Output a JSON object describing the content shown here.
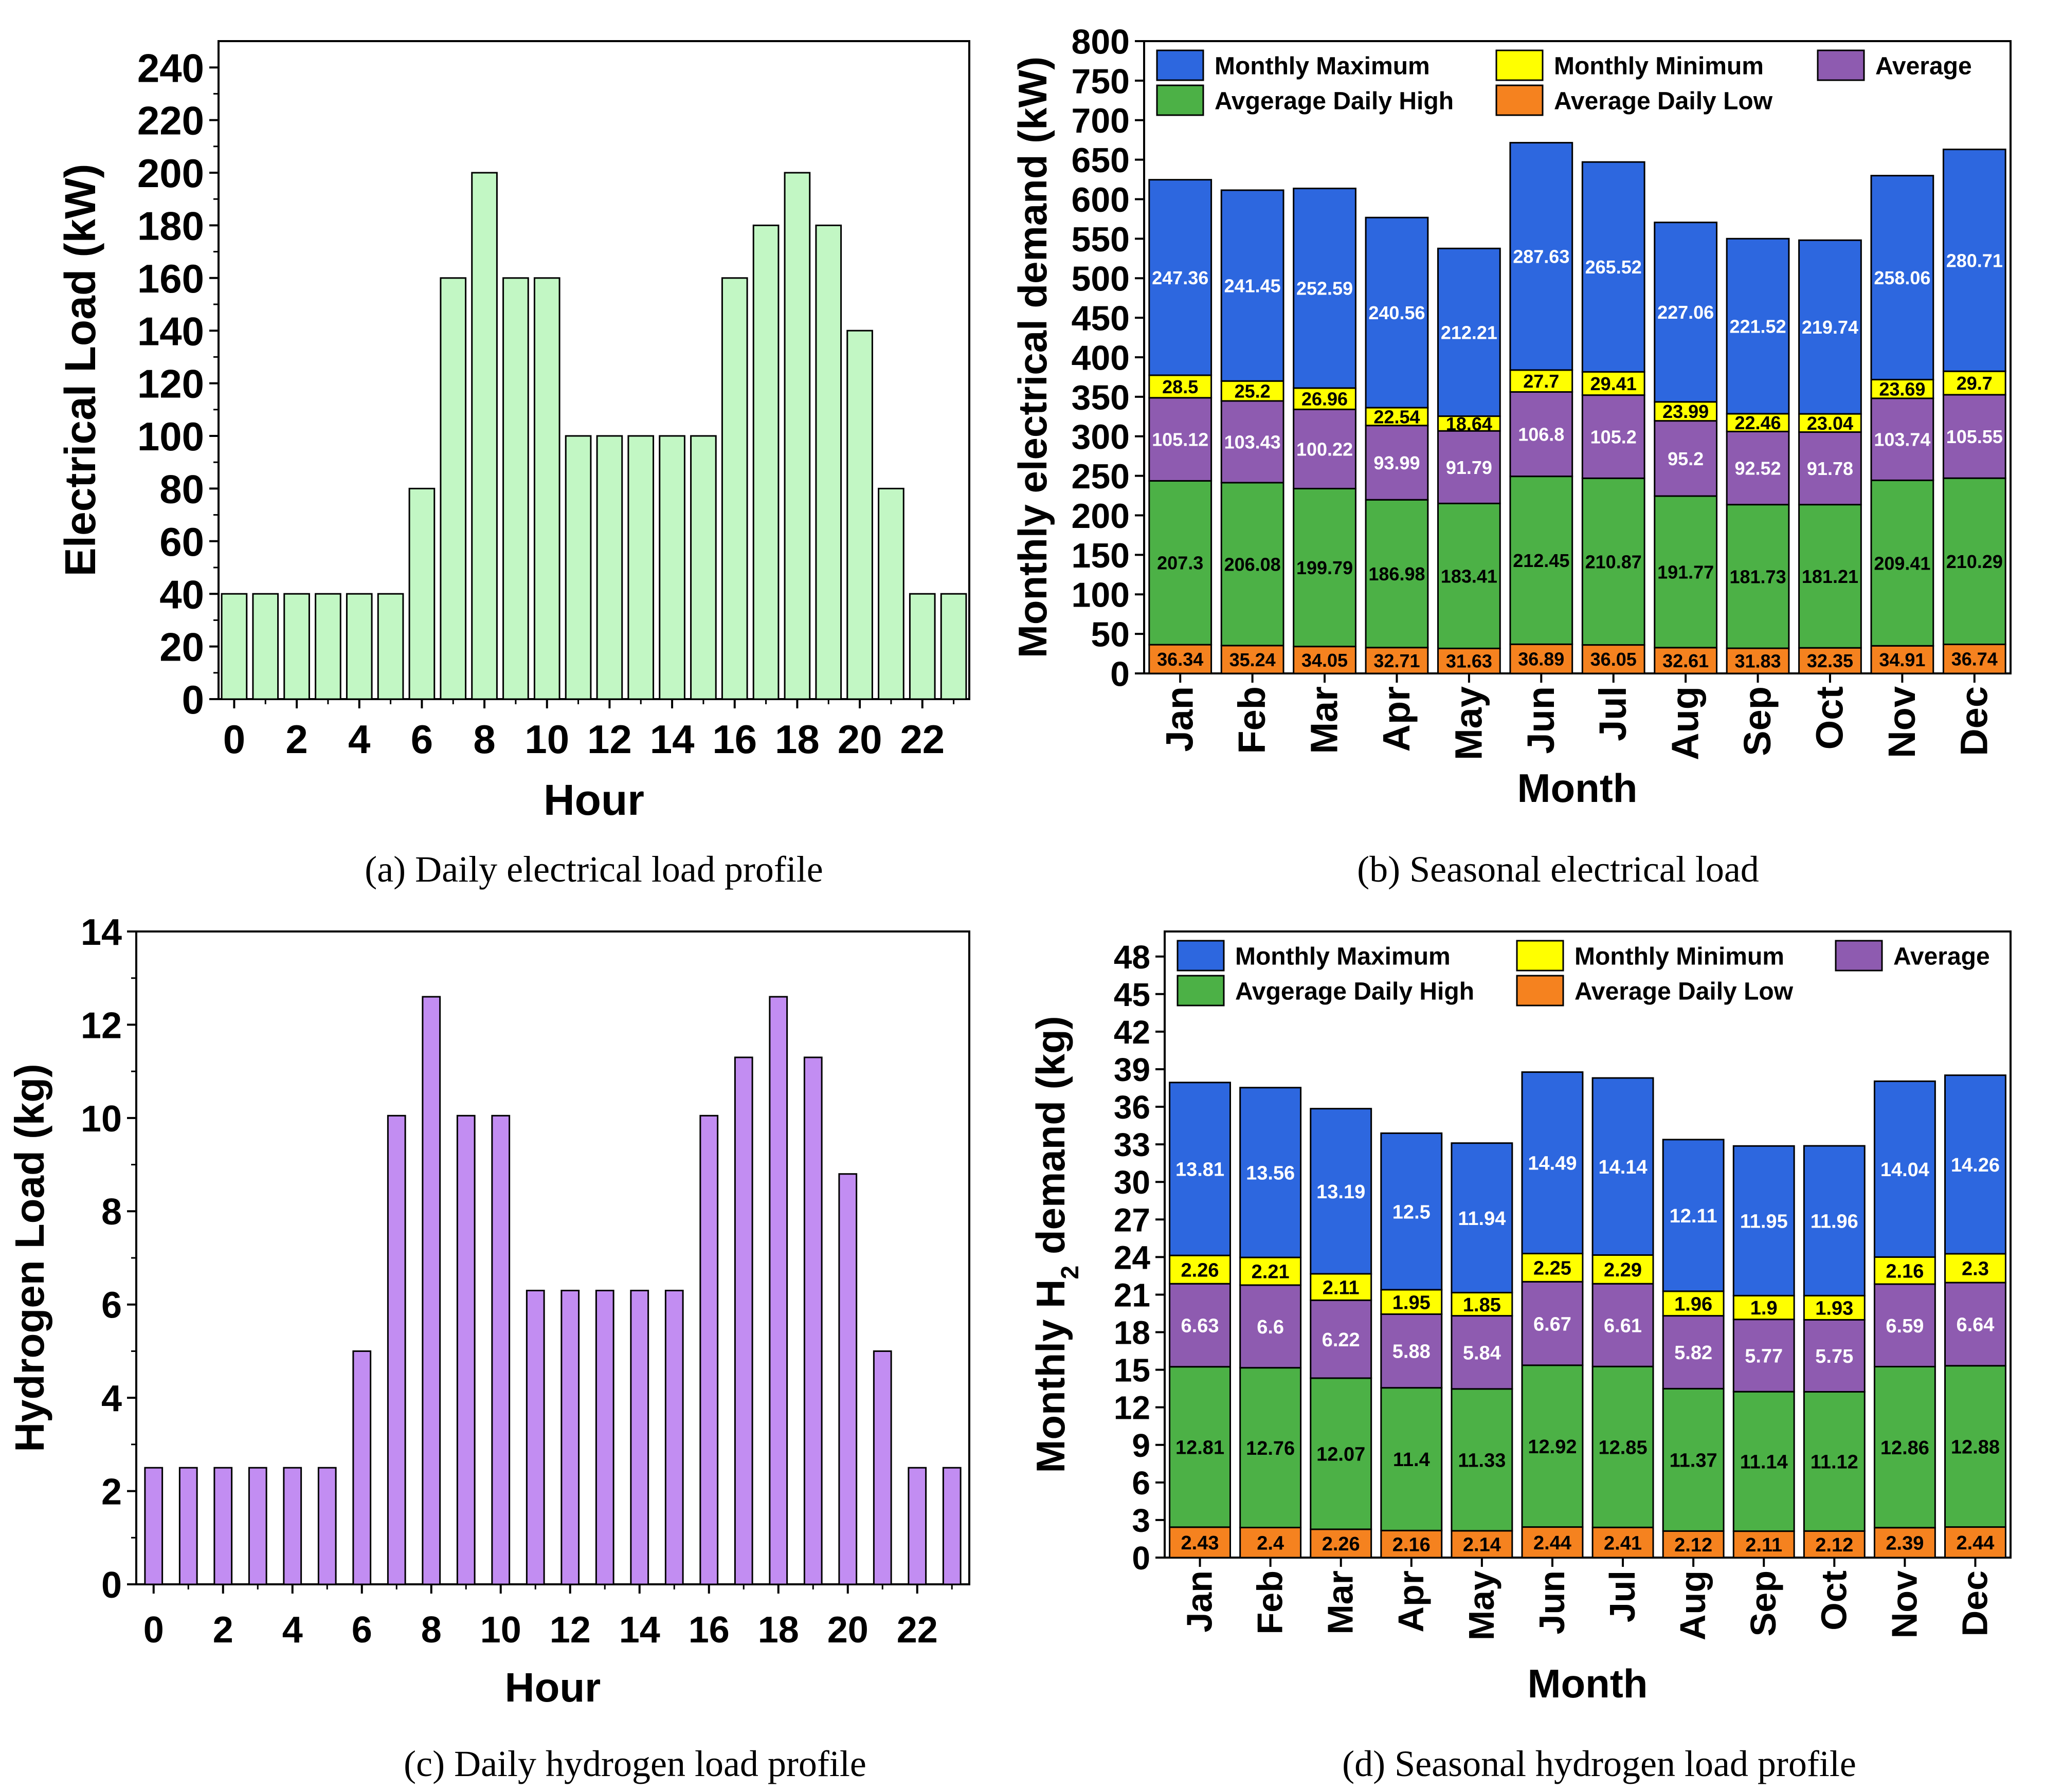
{
  "chart_data": [
    {
      "type": "bar",
      "id": "a",
      "caption": "(a) Daily electrical load profile",
      "xlabel": "Hour",
      "ylabel": "Electrical Load (kW)",
      "ylim": [
        0,
        250
      ],
      "yticks": [
        "0",
        "20",
        "40",
        "60",
        "80",
        "100",
        "120",
        "140",
        "160",
        "180",
        "200",
        "220",
        "240"
      ],
      "yticks_values": [
        0,
        20,
        40,
        60,
        80,
        100,
        120,
        140,
        160,
        180,
        200,
        220,
        240
      ],
      "xticks": [
        "0",
        "2",
        "4",
        "6",
        "8",
        "10",
        "12",
        "14",
        "16",
        "18",
        "20",
        "22"
      ],
      "xticks_values": [
        0,
        2,
        4,
        6,
        8,
        10,
        12,
        14,
        16,
        18,
        20,
        22
      ],
      "x": [
        0,
        1,
        2,
        3,
        4,
        5,
        6,
        7,
        8,
        9,
        10,
        11,
        12,
        13,
        14,
        15,
        16,
        17,
        18,
        19,
        20,
        21,
        22,
        23
      ],
      "values": [
        40,
        40,
        40,
        40,
        40,
        40,
        80,
        160,
        200,
        160,
        160,
        100,
        100,
        100,
        100,
        100,
        160,
        180,
        200,
        180,
        140,
        80,
        40,
        40
      ],
      "color": "#c2f7c4"
    },
    {
      "type": "bar",
      "stacked": true,
      "id": "b",
      "caption": "(b) Seasonal electrical load",
      "xlabel": "Month",
      "ylabel": "Monthly electrical demand (kW)",
      "ylim": [
        0,
        800
      ],
      "yticks": [
        "0",
        "50",
        "100",
        "150",
        "200",
        "250",
        "300",
        "350",
        "400",
        "450",
        "500",
        "550",
        "600",
        "650",
        "700",
        "750",
        "800"
      ],
      "yticks_values": [
        0,
        50,
        100,
        150,
        200,
        250,
        300,
        350,
        400,
        450,
        500,
        550,
        600,
        650,
        700,
        750,
        800
      ],
      "categories": [
        "Jan",
        "Feb",
        "Mar",
        "Apr",
        "May",
        "Jun",
        "Jul",
        "Aug",
        "Sep",
        "Oct",
        "Nov",
        "Dec"
      ],
      "legend": [
        "Monthly Maximum",
        "Monthly Minimum",
        "Average",
        "Avgerage Daily High",
        "Average Daily Low"
      ],
      "series": [
        {
          "name": "Average Daily Low",
          "color": "#f5821f",
          "label_color": "#000000",
          "values": [
            36.34,
            35.24,
            34.05,
            32.71,
            31.63,
            36.89,
            36.05,
            32.61,
            31.83,
            32.35,
            34.91,
            36.74
          ],
          "labels": [
            "36.34",
            "35.24",
            "34.05",
            "32.71",
            "31.63",
            "36.89",
            "36.05",
            "32.61",
            "31.83",
            "32.35",
            "34.91",
            "36.74"
          ]
        },
        {
          "name": "Avgerage Daily High",
          "color": "#4cb146",
          "label_color": "#000000",
          "values": [
            207.3,
            206.08,
            199.79,
            186.98,
            183.41,
            212.45,
            210.87,
            191.77,
            181.73,
            181.21,
            209.41,
            210.29
          ],
          "labels": [
            "207.3",
            "206.08",
            "199.79",
            "186.98",
            "183.41",
            "212.45",
            "210.87",
            "191.77",
            "181.73",
            "181.21",
            "209.41",
            "210.29"
          ]
        },
        {
          "name": "Average",
          "color": "#8e5bb0",
          "label_color": "#ffffff",
          "values": [
            105.12,
            103.43,
            100.22,
            93.99,
            91.79,
            106.8,
            105.2,
            95.2,
            92.52,
            91.78,
            103.74,
            105.55
          ],
          "labels": [
            "105.12",
            "103.43",
            "100.22",
            "93.99",
            "91.79",
            "106.8",
            "105.2",
            "95.2",
            "92.52",
            "91.78",
            "103.74",
            "105.55"
          ]
        },
        {
          "name": "Monthly Minimum",
          "color": "#ffff00",
          "label_color": "#000000",
          "values": [
            28.5,
            25.2,
            26.96,
            22.54,
            18.64,
            27.7,
            29.41,
            23.99,
            22.46,
            23.04,
            23.69,
            29.7
          ],
          "labels": [
            "28.5",
            "25.2",
            "26.96",
            "22.54",
            "18.64",
            "27.7",
            "29.41",
            "23.99",
            "22.46",
            "23.04",
            "23.69",
            "29.7"
          ]
        },
        {
          "name": "Monthly Maximum",
          "color": "#2d67df",
          "label_color": "#ffffff",
          "values": [
            247.36,
            241.45,
            252.59,
            240.56,
            212.21,
            287.63,
            265.52,
            227.06,
            221.52,
            219.74,
            258.06,
            280.71
          ],
          "labels": [
            "247.36",
            "241.45",
            "252.59",
            "240.56",
            "212.21",
            "287.63",
            "265.52",
            "227.06",
            "221.52",
            "219.74",
            "258.06",
            "280.71"
          ]
        }
      ]
    },
    {
      "type": "bar",
      "id": "c",
      "caption": "(c) Daily hydrogen load profile",
      "xlabel": "Hour",
      "ylabel": "Hydrogen Load (kg)",
      "ylim": [
        0,
        14
      ],
      "yticks": [
        "0",
        "2",
        "4",
        "6",
        "8",
        "10",
        "12",
        "14"
      ],
      "yticks_values": [
        0,
        2,
        4,
        6,
        8,
        10,
        12,
        14
      ],
      "xticks": [
        "0",
        "2",
        "4",
        "6",
        "8",
        "10",
        "12",
        "14",
        "16",
        "18",
        "20",
        "22"
      ],
      "xticks_values": [
        0,
        2,
        4,
        6,
        8,
        10,
        12,
        14,
        16,
        18,
        20,
        22
      ],
      "x": [
        0,
        1,
        2,
        3,
        4,
        5,
        6,
        7,
        8,
        9,
        10,
        11,
        12,
        13,
        14,
        15,
        16,
        17,
        18,
        19,
        20,
        21,
        22,
        23
      ],
      "values": [
        2.5,
        2.5,
        2.5,
        2.5,
        2.5,
        2.5,
        5.0,
        10.05,
        12.6,
        10.05,
        10.05,
        6.3,
        6.3,
        6.3,
        6.3,
        6.3,
        10.05,
        11.3,
        12.6,
        11.3,
        8.8,
        5.0,
        2.5,
        2.5
      ],
      "color": "#c28df2"
    },
    {
      "type": "bar",
      "stacked": true,
      "id": "d",
      "caption": "(d) Seasonal hydrogen load profile",
      "xlabel": "Month",
      "ylabel_prefix": "Monthly H",
      "ylabel_sub": "2",
      "ylabel_suffix": " demand (kg)",
      "ylim": [
        0,
        50
      ],
      "yticks": [
        "0",
        "3",
        "6",
        "9",
        "12",
        "15",
        "18",
        "21",
        "24",
        "27",
        "30",
        "33",
        "36",
        "39",
        "42",
        "45",
        "48"
      ],
      "yticks_values": [
        0,
        3,
        6,
        9,
        12,
        15,
        18,
        21,
        24,
        27,
        30,
        33,
        36,
        39,
        42,
        45,
        48
      ],
      "categories": [
        "Jan",
        "Feb",
        "Mar",
        "Apr",
        "May",
        "Jun",
        "Jul",
        "Aug",
        "Sep",
        "Oct",
        "Nov",
        "Dec"
      ],
      "legend": [
        "Monthly Maximum",
        "Monthly Minimum",
        "Average",
        "Avgerage Daily High",
        "Average Daily Low"
      ],
      "series": [
        {
          "name": "Average Daily Low",
          "color": "#f5821f",
          "label_color": "#000000",
          "values": [
            2.43,
            2.4,
            2.26,
            2.16,
            2.14,
            2.44,
            2.41,
            2.12,
            2.11,
            2.12,
            2.39,
            2.44
          ],
          "labels": [
            "2.43",
            "2.4",
            "2.26",
            "2.16",
            "2.14",
            "2.44",
            "2.41",
            "2.12",
            "2.11",
            "2.12",
            "2.39",
            "2.44"
          ]
        },
        {
          "name": "Avgerage Daily High",
          "color": "#4cb146",
          "label_color": "#000000",
          "values": [
            12.81,
            12.76,
            12.07,
            11.4,
            11.33,
            12.92,
            12.85,
            11.37,
            11.14,
            11.12,
            12.86,
            12.88
          ],
          "labels": [
            "12.81",
            "12.76",
            "12.07",
            "11.4",
            "11.33",
            "12.92",
            "12.85",
            "11.37",
            "11.14",
            "11.12",
            "12.86",
            "12.88"
          ]
        },
        {
          "name": "Average",
          "color": "#8e5bb0",
          "label_color": "#ffffff",
          "values": [
            6.63,
            6.6,
            6.22,
            5.88,
            5.84,
            6.67,
            6.61,
            5.82,
            5.77,
            5.75,
            6.59,
            6.64
          ],
          "labels": [
            "6.63",
            "6.6",
            "6.22",
            "5.88",
            "5.84",
            "6.67",
            "6.61",
            "5.82",
            "5.77",
            "5.75",
            "6.59",
            "6.64"
          ]
        },
        {
          "name": "Monthly Minimum",
          "color": "#ffff00",
          "label_color": "#000000",
          "values": [
            2.26,
            2.21,
            2.11,
            1.95,
            1.85,
            2.25,
            2.29,
            1.96,
            1.9,
            1.93,
            2.16,
            2.3
          ],
          "labels": [
            "2.26",
            "2.21",
            "2.11",
            "1.95",
            "1.85",
            "2.25",
            "2.29",
            "1.96",
            "1.9",
            "1.93",
            "2.16",
            "2.3"
          ]
        },
        {
          "name": "Monthly Maximum",
          "color": "#2d67df",
          "label_color": "#ffffff",
          "values": [
            13.81,
            13.56,
            13.19,
            12.5,
            11.94,
            14.49,
            14.14,
            12.11,
            11.95,
            11.96,
            14.04,
            14.26
          ],
          "labels": [
            "13.81",
            "13.56",
            "13.19",
            "12.5",
            "11.94",
            "14.49",
            "14.14",
            "12.11",
            "11.95",
            "11.96",
            "14.04",
            "14.26"
          ]
        }
      ]
    }
  ]
}
